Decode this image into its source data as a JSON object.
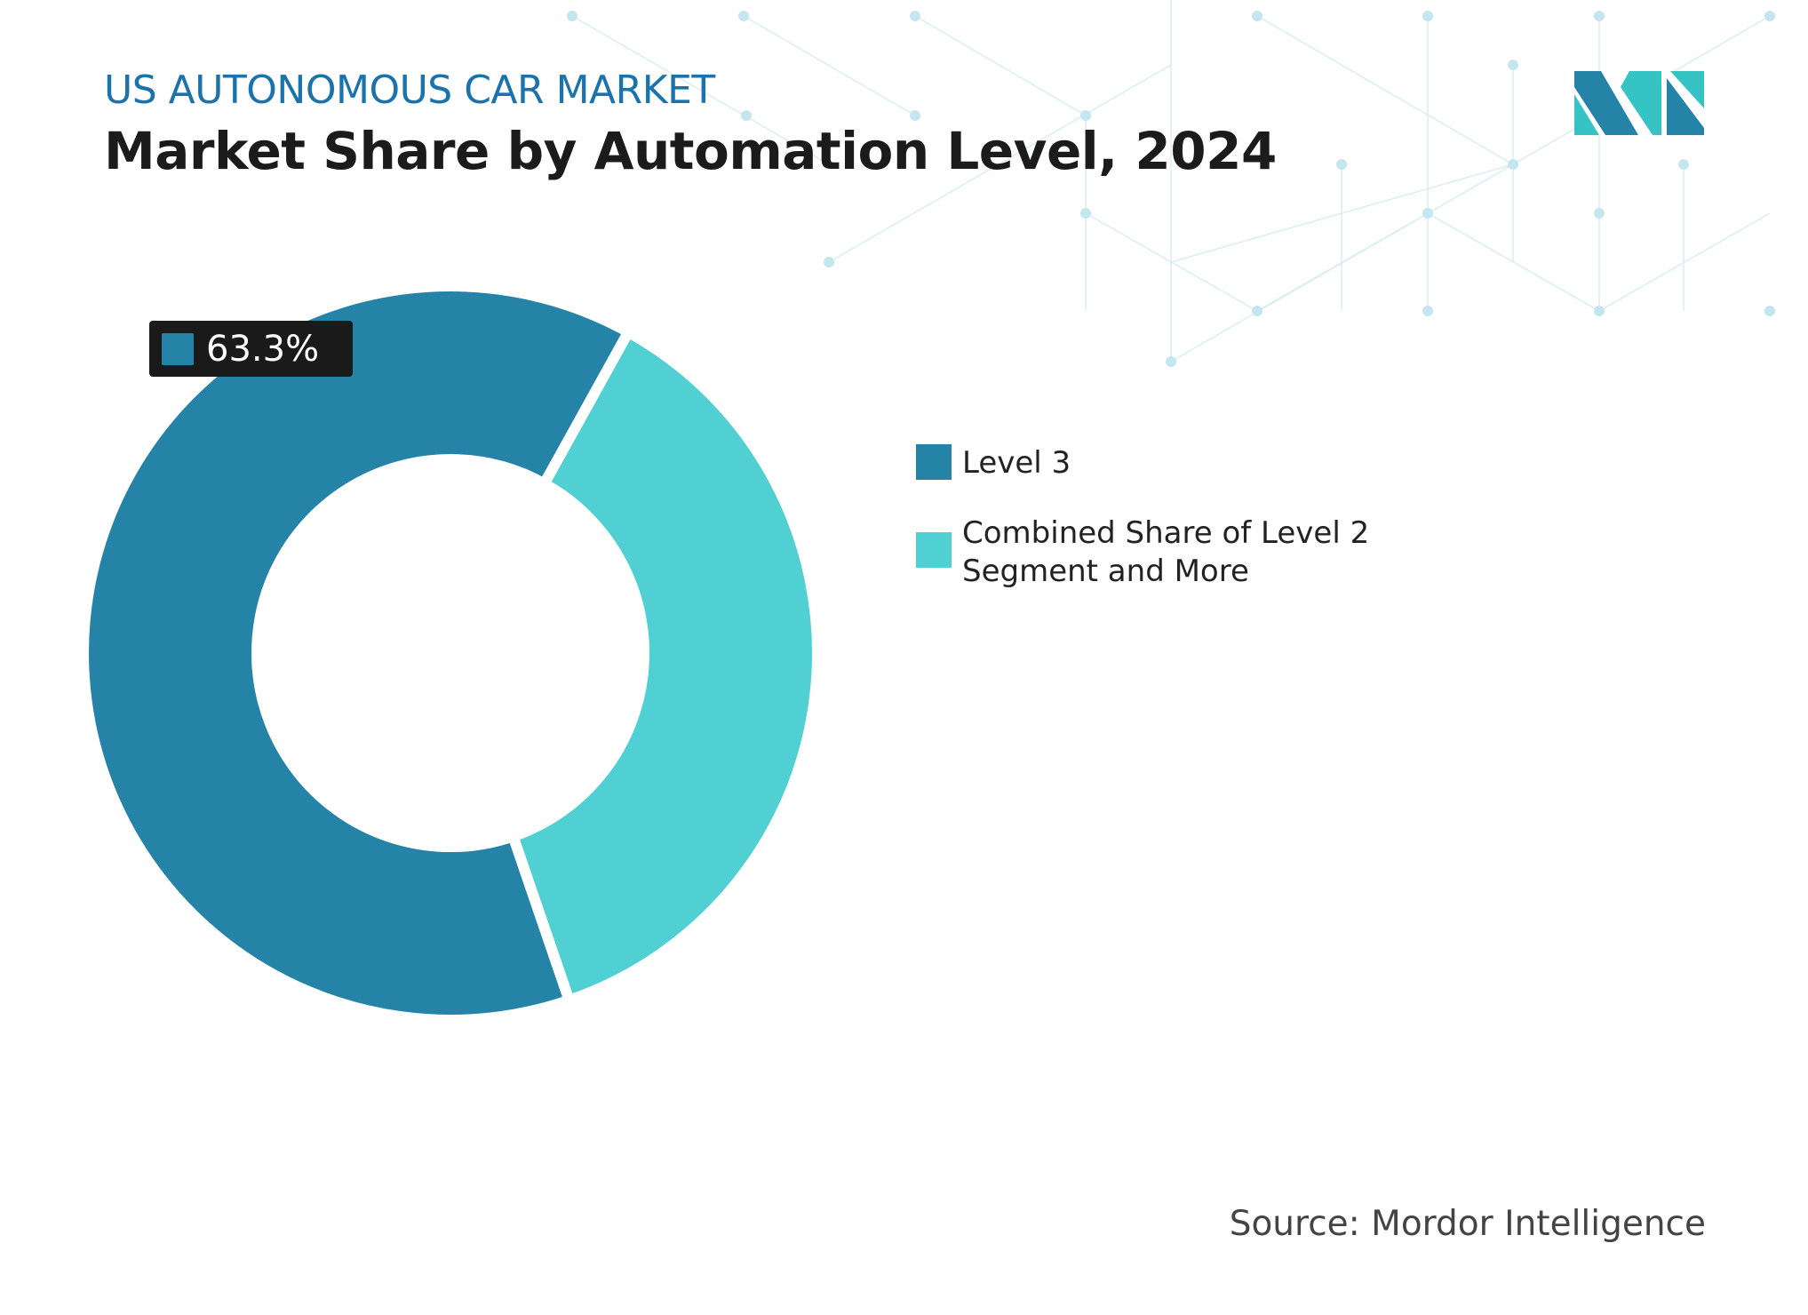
{
  "header": {
    "kicker": "US AUTONOMOUS CAR MARKET",
    "title": "Market Share by Automation Level, 2024"
  },
  "source": "Source: Mordor Intelligence",
  "colors": {
    "level3": "#2683a8",
    "level2": "#51d0d3",
    "kicker": "#1a73ad",
    "tooltip_bg": "#1a1a1a"
  },
  "logo": {
    "name": "Mordor Intelligence logo"
  },
  "chart_data": {
    "type": "pie",
    "variant": "donut",
    "categories": [
      "Level 3",
      "Combined Share of Level 2 Segment and More"
    ],
    "values": [
      63.3,
      36.7
    ],
    "colors": [
      "#2683a8",
      "#51d0d3"
    ],
    "title": "Market Share by Automation Level, 2024",
    "data_labels": [
      {
        "category": "Level 3",
        "text": "63.3%"
      }
    ],
    "legend_placement": "right"
  }
}
